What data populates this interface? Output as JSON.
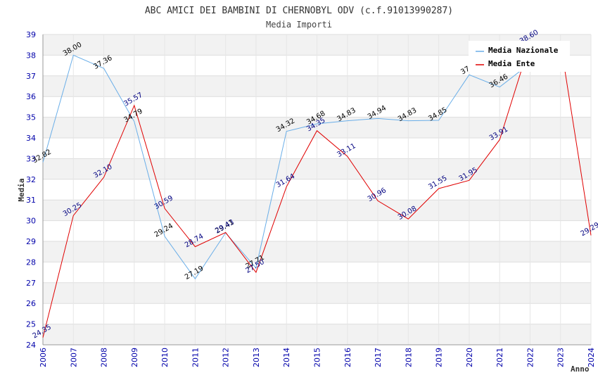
{
  "chart_data": {
    "type": "line",
    "title": "ABC AMICI DEI BAMBINI DI CHERNOBYL ODV (c.f.91013990287)",
    "subtitle": "Media Importi",
    "xlabel": "Anno",
    "ylabel": "Media",
    "ylim": [
      24,
      39
    ],
    "grid": true,
    "legend_position": "top-right",
    "x": [
      "2006",
      "2007",
      "2008",
      "2009",
      "2010",
      "2011",
      "2012",
      "2013",
      "2014",
      "2015",
      "2016",
      "2017",
      "2018",
      "2019",
      "2020",
      "2021",
      "2022",
      "2023",
      "2024"
    ],
    "yticks": [
      "24",
      "25",
      "26",
      "27",
      "28",
      "29",
      "30",
      "31",
      "32",
      "33",
      "34",
      "35",
      "36",
      "37",
      "38",
      "39"
    ],
    "series": [
      {
        "name": "Media Nazionale",
        "color": "#6aaee8",
        "values": [
          32.82,
          38.0,
          37.36,
          34.79,
          29.24,
          27.19,
          29.41,
          27.71,
          34.32,
          34.68,
          34.83,
          34.94,
          34.83,
          34.85,
          37.05,
          36.46,
          37.6,
          null,
          null
        ],
        "labels": [
          "32.82",
          "38.00",
          "37.36",
          "34.79",
          "29.24",
          "27.19",
          "29.41",
          "27.71",
          "34.32",
          "34.68",
          "34.83",
          "34.94",
          "34.83",
          "34.85",
          "37.0",
          "36.46",
          "",
          "",
          ""
        ]
      },
      {
        "name": "Media Ente",
        "color": "#e00000",
        "values": [
          24.35,
          30.25,
          32.1,
          35.57,
          30.59,
          28.74,
          29.43,
          27.5,
          31.64,
          34.35,
          33.11,
          30.96,
          30.08,
          31.55,
          31.95,
          33.91,
          38.6,
          38.6,
          29.29
        ],
        "labels": [
          "24.35",
          "30.25",
          "32.10",
          "35.57",
          "30.59",
          "28.74",
          "29.43",
          "27.50",
          "31.64",
          "34.35",
          "33.11",
          "30.96",
          "30.08",
          "31.55",
          "31.95",
          "33.91",
          "38.60",
          "",
          "29.29"
        ]
      }
    ]
  }
}
